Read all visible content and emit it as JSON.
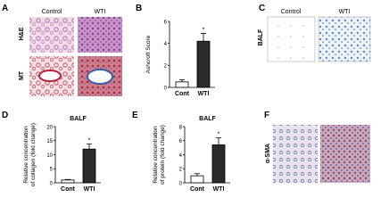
{
  "panels": [
    {
      "letter": "A",
      "columns": [
        "Control",
        "WTI"
      ],
      "rows": [
        "H&E",
        "MT"
      ]
    },
    {
      "letter": "B"
    },
    {
      "letter": "C",
      "columns": [
        "Control",
        "WTI"
      ],
      "rows": [
        "BALF"
      ]
    },
    {
      "letter": "D"
    },
    {
      "letter": "E"
    },
    {
      "letter": "F",
      "rows": [
        "α-SMA"
      ]
    }
  ],
  "chart_data": [
    {
      "type": "bar",
      "ylabel": [
        "Ashcroft Score"
      ],
      "categories": [
        "Cont",
        "WTI"
      ],
      "values": [
        0.5,
        4.2
      ],
      "errors": [
        0.2,
        0.7
      ],
      "colors": [
        "#ffffff",
        "#2b2b2b"
      ],
      "ylim": [
        0,
        6
      ],
      "yticks": [
        0,
        2,
        4,
        6
      ],
      "annotation": "*"
    },
    {
      "type": "bar",
      "title": "BALF",
      "ylabel": [
        "Relative concentration",
        "of collagen (fold change)"
      ],
      "categories": [
        "Cont",
        "WTI"
      ],
      "values": [
        1,
        12
      ],
      "errors": [
        0.2,
        1.8
      ],
      "colors": [
        "#ffffff",
        "#2b2b2b"
      ],
      "ylim": [
        0,
        20
      ],
      "yticks": [
        0,
        5,
        10,
        15,
        20
      ],
      "annotation": "*"
    },
    {
      "type": "bar",
      "title": "BALF",
      "ylabel": [
        "Relative concentration",
        "of protein (fold change)"
      ],
      "categories": [
        "Cont",
        "WTI"
      ],
      "values": [
        1,
        5.4
      ],
      "errors": [
        0.3,
        1.0
      ],
      "colors": [
        "#ffffff",
        "#2b2b2b"
      ],
      "ylim": [
        0,
        8
      ],
      "yticks": [
        0,
        2,
        4,
        6,
        8
      ],
      "annotation": "*"
    }
  ]
}
